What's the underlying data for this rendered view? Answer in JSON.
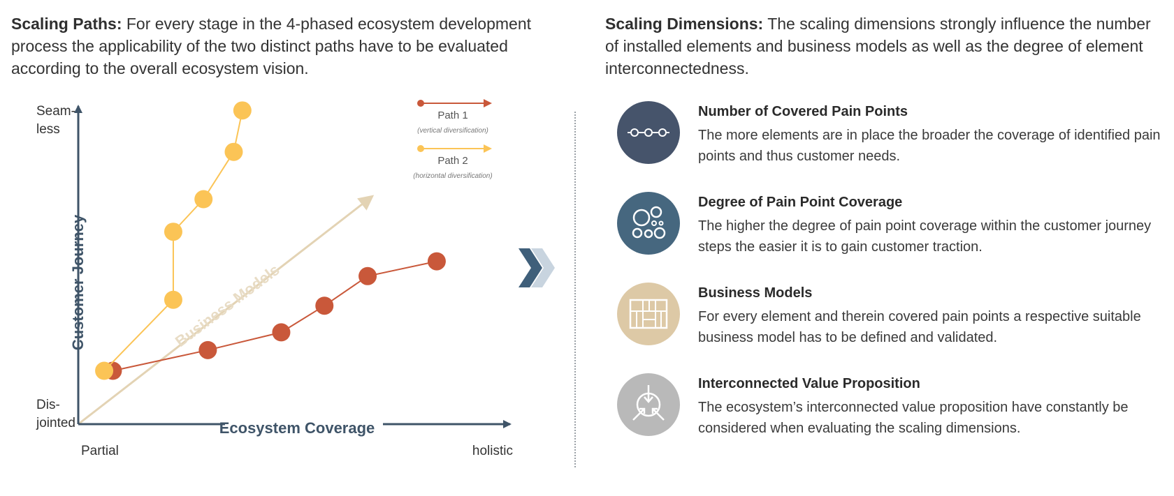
{
  "left_intro": {
    "label": "Scaling Paths:",
    "text": "For every stage in the 4-phased ecosystem development process the applicability of the two distinct paths have to be evaluated according to the overall ecosystem vision."
  },
  "right_intro": {
    "label": "Scaling Dimensions:",
    "text": "The scaling dimensions strongly influence the number of installed elements and business models as well as the degree of element interconnectedness."
  },
  "chart_data": {
    "type": "line",
    "xlabel": "Ecosystem Coverage",
    "ylabel": "Customer Journey",
    "x_ticks": {
      "min": "Partial",
      "max": "holistic"
    },
    "y_ticks": {
      "max_line1": "Seam-",
      "max_line2": "less",
      "min_line1": "Dis-",
      "min_line2": "jointed"
    },
    "diagonal_label": "Business Models",
    "legend": [
      {
        "name": "Path 1",
        "note": "(vertical diversification)",
        "color": "#c9583a"
      },
      {
        "name": "Path 2",
        "note": "(horizontal diversification)",
        "color": "#fbc456"
      }
    ],
    "series": [
      {
        "name": "Path 1",
        "color": "#c9583a",
        "points": [
          [
            0.08,
            0.12
          ],
          [
            0.3,
            0.19
          ],
          [
            0.47,
            0.25
          ],
          [
            0.57,
            0.34
          ],
          [
            0.67,
            0.44
          ],
          [
            0.83,
            0.49
          ]
        ]
      },
      {
        "name": "Path 2",
        "color": "#fbc456",
        "points": [
          [
            0.06,
            0.12
          ],
          [
            0.22,
            0.36
          ],
          [
            0.22,
            0.59
          ],
          [
            0.29,
            0.7
          ],
          [
            0.36,
            0.86
          ],
          [
            0.38,
            1.0
          ]
        ]
      }
    ],
    "diagonal_color": "#e3d3b4",
    "axis_color": "#3f5468"
  },
  "dimensions": [
    {
      "title": "Number of Covered Pain Points",
      "desc": "The more elements are in place the broader the coverage of identified pain points and thus customer needs.",
      "color": "#46546b",
      "icon": "linked-nodes-icon"
    },
    {
      "title": "Degree of Pain Point Coverage",
      "desc": "The higher the degree of pain point coverage within the customer journey steps the easier it is to gain customer traction.",
      "color": "#46677f",
      "icon": "bubbles-icon"
    },
    {
      "title": "Business Models",
      "desc": "For every element and therein covered pain points a respective suitable business model has to be defined and validated.",
      "color": "#ddc9a6",
      "icon": "grid-blocks-icon"
    },
    {
      "title": "Interconnected Value Proposition",
      "desc": "The ecosystem’s interconnected value proposition have constantly be considered when evaluating the scaling dimensions.",
      "color": "#b9b9b9",
      "icon": "converging-arrows-icon"
    }
  ],
  "chevron_colors": [
    "#3f5f7a",
    "#c8d4df"
  ]
}
